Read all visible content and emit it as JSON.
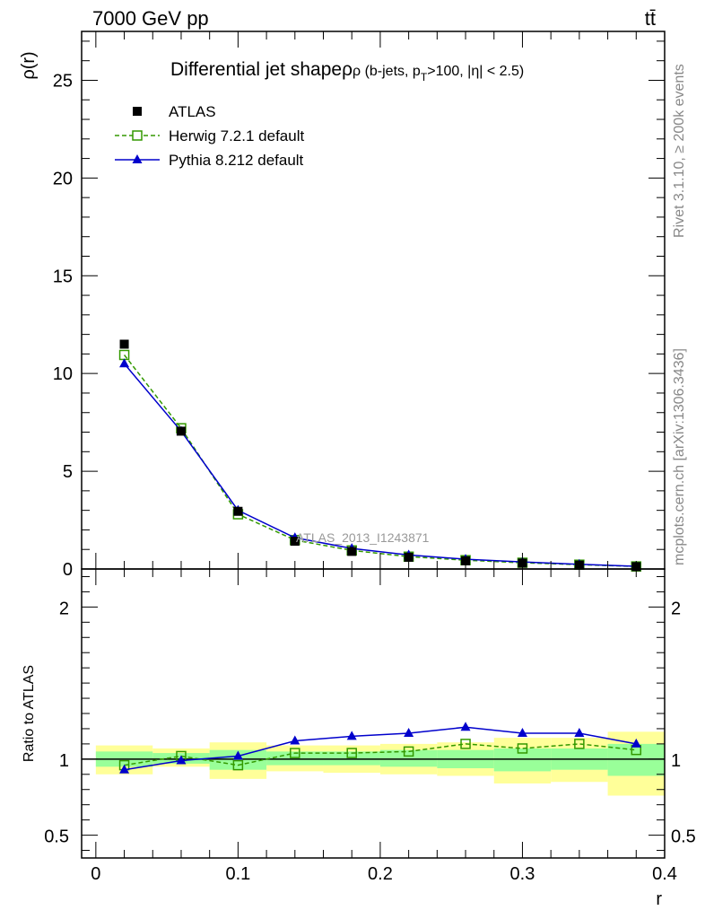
{
  "header": {
    "left": "7000 GeV pp",
    "right": "tt̄"
  },
  "side_labels": {
    "rivet": "Rivet 3.1.10, ≥ 200k events",
    "mcplots": "mcplots.cern.ch [arXiv:1306.3436]"
  },
  "chart_data": [
    {
      "type": "line",
      "title": "Differential jet shape",
      "title_suffix": "ρ (b-jets, p",
      "title_sub": "T",
      "title_tail": ">100, |η| < 2.5)",
      "watermark": "ATLAS_2013_I1243871",
      "ylabel": "ρ(r)",
      "xlim": [
        -0.01,
        0.4
      ],
      "ylim": [
        0,
        27.5
      ],
      "yticks": [
        0,
        5,
        10,
        15,
        20,
        25
      ],
      "ytick_labels": [
        "0",
        "5",
        "10",
        "15",
        "20",
        "25"
      ],
      "legend_placement": "top-left",
      "x": [
        0.02,
        0.06,
        0.1,
        0.14,
        0.18,
        0.22,
        0.26,
        0.3,
        0.34,
        0.38
      ],
      "series": [
        {
          "name": "ATLAS",
          "color": "#000000",
          "marker": "filled-square",
          "values": [
            11.5,
            7.05,
            2.95,
            1.42,
            0.9,
            0.6,
            0.42,
            0.3,
            0.2,
            0.12
          ]
        },
        {
          "name": "Herwig 7.2.1 default",
          "color": "#339900",
          "marker": "open-square",
          "dashed": true,
          "values": [
            10.95,
            7.2,
            2.8,
            1.48,
            0.95,
            0.63,
            0.45,
            0.32,
            0.22,
            0.13
          ]
        },
        {
          "name": "Pythia 8.212 default",
          "color": "#0000cc",
          "marker": "filled-triangle",
          "values": [
            10.5,
            7.05,
            3.0,
            1.6,
            1.05,
            0.72,
            0.5,
            0.36,
            0.24,
            0.14
          ]
        }
      ]
    },
    {
      "type": "line",
      "ylabel": "Ratio to ATLAS",
      "xlabel": "r",
      "xlim": [
        -0.01,
        0.4
      ],
      "ylim": [
        0.35,
        2.25
      ],
      "yticks": [
        0.5,
        1,
        2
      ],
      "ytick_labels": [
        "0.5",
        "1",
        "2"
      ],
      "xticks": [
        0,
        0.1,
        0.2,
        0.3,
        0.4
      ],
      "xtick_labels": [
        "0",
        "0.1",
        "0.2",
        "0.3",
        "0.4"
      ],
      "bin_edges": [
        0.0,
        0.04,
        0.08,
        0.12,
        0.16,
        0.2,
        0.24,
        0.28,
        0.32,
        0.36,
        0.4
      ],
      "band_total": {
        "color": "#ffff99",
        "low": [
          0.9,
          0.95,
          0.87,
          0.92,
          0.91,
          0.9,
          0.89,
          0.84,
          0.85,
          0.76
        ],
        "high": [
          1.09,
          1.07,
          1.11,
          1.09,
          1.09,
          1.1,
          1.11,
          1.14,
          1.14,
          1.18
        ]
      },
      "band_stat": {
        "color": "#99ff99",
        "low": [
          0.95,
          0.97,
          0.93,
          0.96,
          0.96,
          0.95,
          0.94,
          0.92,
          0.93,
          0.89
        ],
        "high": [
          1.05,
          1.04,
          1.06,
          1.05,
          1.05,
          1.06,
          1.06,
          1.07,
          1.07,
          1.1
        ]
      },
      "x": [
        0.02,
        0.06,
        0.1,
        0.14,
        0.18,
        0.22,
        0.26,
        0.3,
        0.34,
        0.38
      ],
      "series": [
        {
          "name": "Herwig 7.2.1 default",
          "color": "#339900",
          "marker": "open-square",
          "dashed": true,
          "values": [
            0.96,
            1.02,
            0.96,
            1.04,
            1.04,
            1.05,
            1.1,
            1.07,
            1.1,
            1.06
          ]
        },
        {
          "name": "Pythia 8.212 default",
          "color": "#0000cc",
          "marker": "filled-triangle",
          "values": [
            0.93,
            0.99,
            1.02,
            1.12,
            1.15,
            1.17,
            1.21,
            1.17,
            1.17,
            1.1
          ]
        }
      ]
    }
  ]
}
